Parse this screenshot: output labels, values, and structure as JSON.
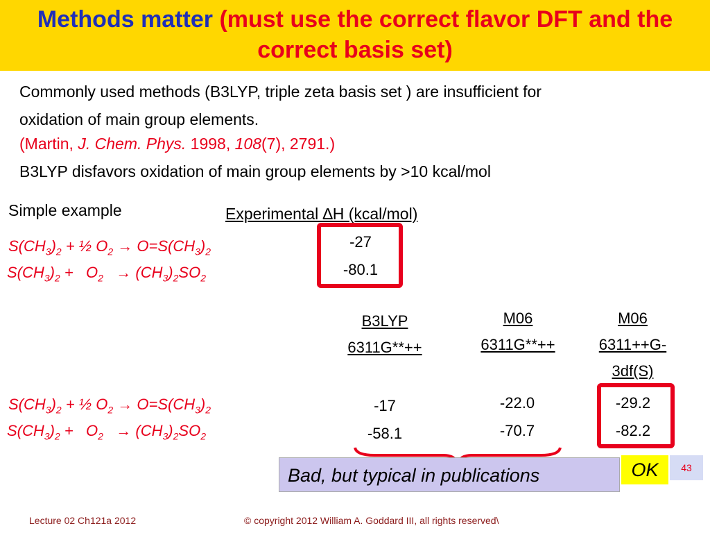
{
  "header": {
    "title_blue": "Methods matter",
    "title_red": "(must use the correct flavor DFT and the correct basis set)"
  },
  "intro": {
    "line1": "Commonly used methods (B3LYP, triple zeta basis set ) are insufficient for oxidation of main group elements.",
    "citation": [
      "(Martin, ",
      "J. Chem. Phys.",
      " 1998, ",
      "108",
      "(7), 2791.)"
    ],
    "line2": "B3LYP disfavors oxidation of main group elements by >10 kcal/mol"
  },
  "example_label": "Simple example",
  "experimental": {
    "header": "Experimental ∆H (kcal/mol)",
    "values": [
      "-27",
      "-80.1"
    ]
  },
  "reactions": [
    [
      "S(CH",
      "3",
      ")",
      "2",
      " + ½ O",
      "2",
      " → O=S(CH",
      "3",
      ")",
      "2"
    ],
    [
      "S(CH",
      "3",
      ")",
      "2",
      " +   O",
      "2",
      "   → (CH",
      "3",
      ")",
      "2",
      "SO",
      "2"
    ]
  ],
  "table": {
    "columns": [
      {
        "header": [
          "B3LYP",
          "6311G**++"
        ],
        "values": [
          "-17",
          "-58.1"
        ]
      },
      {
        "header": [
          "M06",
          "6311G**++"
        ],
        "values": [
          "-22.0",
          "-70.7"
        ]
      },
      {
        "header": [
          "M06",
          "6311++G-",
          "3df(S)"
        ],
        "values": [
          "-29.2",
          "-82.2"
        ]
      }
    ]
  },
  "callouts": {
    "bad": "Bad, but typical in publications",
    "ok": "OK"
  },
  "footer": {
    "left": "Lecture 02 Ch121a 2012",
    "center": "© copyright 2012 William A. Goddard III, all rights reserved\\",
    "page": "43"
  }
}
